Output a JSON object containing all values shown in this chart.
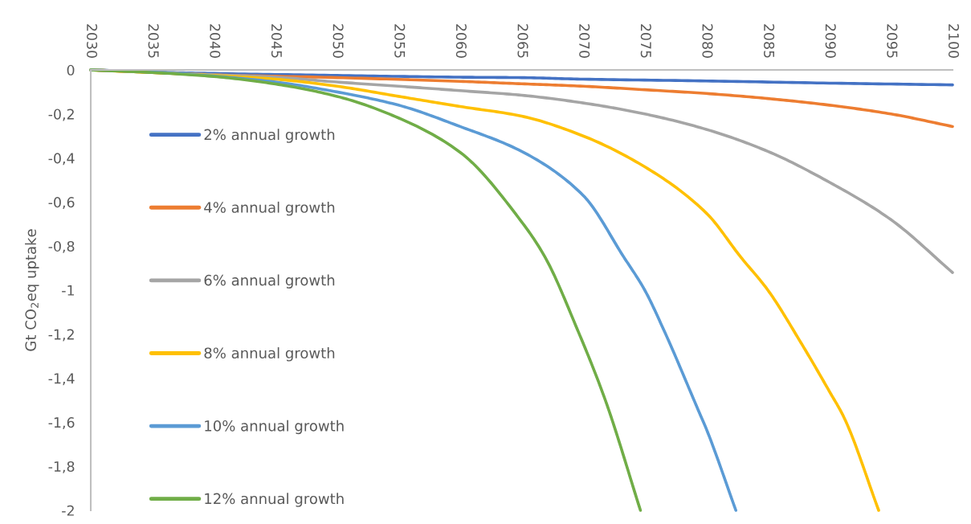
{
  "chart_data": {
    "type": "line",
    "ylabel": "Gt CO$_{2}$eq uptake",
    "xlim": [
      2030,
      2100
    ],
    "xticks": [
      2030,
      2035,
      2040,
      2045,
      2050,
      2055,
      2060,
      2065,
      2070,
      2075,
      2080,
      2085,
      2090,
      2095,
      2100
    ],
    "ylim": [
      -2,
      0
    ],
    "yticks": [
      {
        "value": 0,
        "label": "0"
      },
      {
        "value": -0.2,
        "label": "-0,2"
      },
      {
        "value": -0.4,
        "label": "-0,4"
      },
      {
        "value": -0.6,
        "label": "-0,6"
      },
      {
        "value": -0.8,
        "label": "-0,8"
      },
      {
        "value": -1,
        "label": "-1"
      },
      {
        "value": -1.2,
        "label": "-1,2"
      },
      {
        "value": -1.4,
        "label": "-1,4"
      },
      {
        "value": -1.6,
        "label": "-1,6"
      },
      {
        "value": -1.8,
        "label": "-1,8"
      },
      {
        "value": -2,
        "label": "-2"
      }
    ],
    "grid": false,
    "legend": "left",
    "marker": "none",
    "line_style": "solid",
    "series": [
      {
        "name": "2% annual growth",
        "color": "#4472c4",
        "x": [
          2030,
          2035,
          2040,
          2050,
          2060,
          2065,
          2070,
          2080,
          2090,
          2100
        ],
        "values": [
          0,
          -0.01,
          -0.016,
          -0.025,
          -0.033,
          -0.035,
          -0.042,
          -0.05,
          -0.06,
          -0.068
        ]
      },
      {
        "name": "4% annual growth",
        "color": "#ed7d31",
        "x": [
          2030,
          2040,
          2050,
          2060,
          2065,
          2070,
          2075,
          2080,
          2085,
          2090,
          2095,
          2100
        ],
        "values": [
          0,
          -0.022,
          -0.035,
          -0.052,
          -0.063,
          -0.074,
          -0.09,
          -0.107,
          -0.13,
          -0.16,
          -0.2,
          -0.257
        ]
      },
      {
        "name": "6% annual growth",
        "color": "#a5a5a5",
        "x": [
          2030,
          2035,
          2040,
          2045,
          2050,
          2055,
          2060,
          2065,
          2070,
          2075,
          2080,
          2085,
          2090,
          2095,
          2100
        ],
        "values": [
          0,
          -0.01,
          -0.022,
          -0.033,
          -0.055,
          -0.074,
          -0.094,
          -0.115,
          -0.15,
          -0.2,
          -0.27,
          -0.37,
          -0.51,
          -0.68,
          -0.92
        ]
      },
      {
        "name": "8% annual growth",
        "color": "#ffc000",
        "x": [
          2030,
          2040,
          2045,
          2050,
          2055,
          2060,
          2065,
          2070,
          2075,
          2080,
          2082.8,
          2085,
          2087.7,
          2090,
          2091.2,
          2094
        ],
        "values": [
          0,
          -0.025,
          -0.042,
          -0.074,
          -0.12,
          -0.166,
          -0.21,
          -0.3,
          -0.44,
          -0.65,
          -0.85,
          -1.0,
          -1.24,
          -1.46,
          -1.58,
          -2
        ]
      },
      {
        "name": "10% annual growth",
        "color": "#5b9bd5",
        "x": [
          2030,
          2035,
          2040,
          2045,
          2050,
          2055,
          2060,
          2065,
          2070,
          2073.3,
          2075,
          2076.5,
          2079.5,
          2080,
          2082.4
        ],
        "values": [
          0,
          -0.01,
          -0.028,
          -0.055,
          -0.1,
          -0.16,
          -0.257,
          -0.37,
          -0.57,
          -0.85,
          -1.0,
          -1.175,
          -1.565,
          -1.63,
          -2
        ]
      },
      {
        "name": "12% annual growth",
        "color": "#70ad47",
        "x": [
          2030,
          2035,
          2040,
          2045,
          2050,
          2055,
          2060,
          2065,
          2066.9,
          2069.5,
          2071.8,
          2074.65
        ],
        "values": [
          0,
          -0.012,
          -0.03,
          -0.064,
          -0.12,
          -0.218,
          -0.374,
          -0.69,
          -0.85,
          -1.175,
          -1.5,
          -2
        ]
      }
    ]
  }
}
